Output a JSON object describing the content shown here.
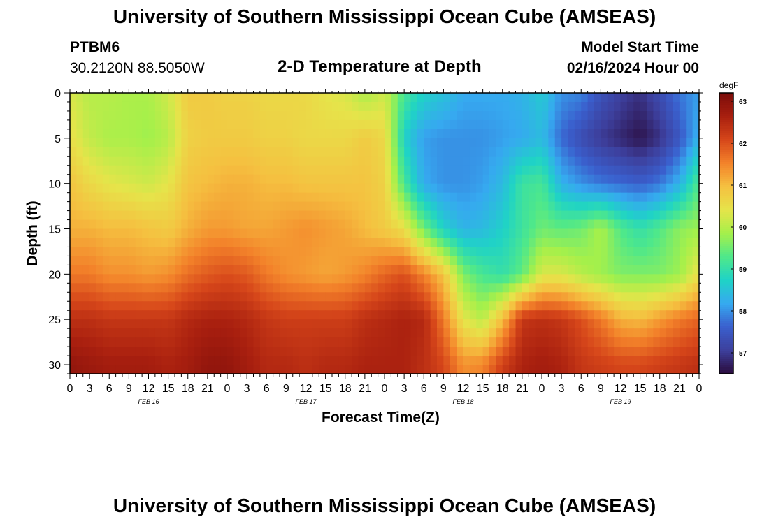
{
  "header": {
    "title": "University of Southern Mississippi Ocean Cube (AMSEAS)",
    "station_id": "PTBM6",
    "station_coords": "30.2120N  88.5050W",
    "start_label": "Model Start Time",
    "start_value": "02/16/2024 Hour 00",
    "bottom_title": "University of Southern Mississippi Ocean Cube (AMSEAS)"
  },
  "chart_data": {
    "type": "heatmap",
    "title": "2-D Temperature at Depth",
    "xlabel": "Forecast Time(Z)",
    "ylabel": "Depth (ft)",
    "x_tick_labels": [
      "0",
      "3",
      "6",
      "9",
      "12",
      "15",
      "18",
      "21",
      "0",
      "3",
      "6",
      "9",
      "12",
      "15",
      "18",
      "21",
      "0",
      "3",
      "6",
      "9",
      "12",
      "15",
      "18",
      "21",
      "0",
      "3",
      "6",
      "9",
      "12",
      "15",
      "18",
      "21",
      "0"
    ],
    "day_labels": [
      "FEB 16",
      "FEB 17",
      "FEB 18",
      "FEB 19"
    ],
    "xlim_hours": [
      0,
      96
    ],
    "y_ticks": [
      0,
      5,
      10,
      15,
      20,
      25,
      30
    ],
    "ylim_ft": [
      0,
      31
    ],
    "y_inverted": true,
    "colorbar": {
      "unit": "degF",
      "ticks": [
        63,
        62,
        61,
        60,
        59,
        58,
        57
      ],
      "range": [
        56.5,
        63.2
      ],
      "colors": [
        "#2a0b3c",
        "#3d3f9c",
        "#3a5fcd",
        "#36a9f0",
        "#1fd3c6",
        "#4fe88a",
        "#a6f04a",
        "#e6e44a",
        "#f5c040",
        "#f3822a",
        "#d6461a",
        "#a81f0f",
        "#7a0c0a"
      ]
    },
    "grid": {
      "hours": [
        0,
        3,
        6,
        9,
        12,
        15,
        18,
        21,
        24,
        27,
        30,
        33,
        36,
        39,
        42,
        45,
        48,
        51,
        54,
        57,
        60,
        63,
        66,
        69,
        72,
        75,
        78,
        81,
        84,
        87,
        90,
        93,
        96
      ],
      "depths_ft": [
        0,
        5,
        10,
        15,
        20,
        25,
        30
      ],
      "temperature_degF": [
        [
          60.3,
          60.0,
          60.0,
          59.9,
          59.9,
          60.2,
          60.8,
          60.8,
          60.7,
          60.7,
          60.6,
          60.6,
          60.6,
          60.4,
          60.3,
          59.9,
          60.2,
          59.2,
          58.7,
          58.5,
          58.2,
          58.2,
          58.2,
          58.3,
          58.6,
          58.0,
          57.9,
          57.4,
          57.1,
          56.9,
          57.3,
          57.8,
          58.1
        ],
        [
          60.5,
          60.1,
          59.9,
          59.9,
          59.8,
          60.0,
          60.7,
          60.8,
          60.8,
          60.8,
          60.7,
          60.7,
          60.6,
          60.6,
          60.6,
          60.8,
          60.6,
          58.7,
          58.1,
          58.0,
          58.0,
          58.0,
          58.1,
          58.2,
          58.4,
          57.7,
          57.3,
          57.0,
          56.8,
          56.6,
          56.9,
          57.5,
          58.3
        ],
        [
          60.9,
          60.6,
          60.4,
          60.3,
          60.2,
          60.4,
          60.9,
          61.0,
          61.1,
          61.1,
          61.0,
          61.0,
          60.9,
          60.9,
          60.9,
          60.9,
          60.7,
          59.2,
          58.2,
          58.0,
          58.0,
          58.1,
          58.4,
          59.1,
          59.2,
          58.3,
          58.0,
          57.8,
          57.7,
          57.6,
          57.8,
          58.3,
          59.3
        ],
        [
          61.1,
          61.1,
          61.0,
          61.0,
          60.9,
          60.8,
          61.1,
          61.3,
          61.3,
          61.2,
          61.2,
          61.3,
          61.4,
          61.3,
          61.2,
          61.0,
          60.8,
          60.5,
          59.5,
          58.7,
          58.3,
          58.4,
          58.7,
          59.1,
          59.5,
          59.4,
          59.5,
          59.9,
          59.3,
          59.0,
          59.3,
          59.7,
          59.8
        ],
        [
          61.6,
          61.6,
          61.4,
          61.4,
          61.3,
          61.4,
          61.7,
          61.9,
          62.0,
          61.9,
          61.6,
          61.4,
          61.3,
          61.2,
          61.3,
          61.5,
          61.8,
          62.0,
          61.5,
          60.9,
          59.6,
          59.2,
          59.0,
          59.4,
          60.3,
          60.3,
          60.0,
          59.8,
          59.6,
          59.6,
          59.6,
          59.8,
          60.5
        ],
        [
          62.4,
          62.4,
          62.3,
          62.3,
          62.3,
          62.3,
          62.5,
          62.6,
          62.6,
          62.5,
          62.3,
          62.2,
          62.2,
          62.2,
          62.2,
          62.4,
          62.5,
          62.6,
          62.5,
          61.6,
          60.4,
          60.0,
          61.0,
          62.3,
          62.4,
          62.3,
          62.0,
          61.6,
          61.1,
          61.0,
          61.3,
          61.6,
          61.8
        ],
        [
          62.9,
          62.8,
          62.7,
          62.7,
          62.7,
          62.6,
          62.7,
          62.9,
          62.9,
          62.7,
          62.5,
          62.5,
          62.4,
          62.5,
          62.5,
          62.6,
          62.6,
          62.6,
          62.4,
          62.1,
          61.4,
          61.5,
          62.2,
          62.6,
          62.7,
          62.6,
          62.3,
          62.2,
          62.1,
          62.1,
          62.2,
          62.3,
          62.4
        ]
      ]
    }
  }
}
